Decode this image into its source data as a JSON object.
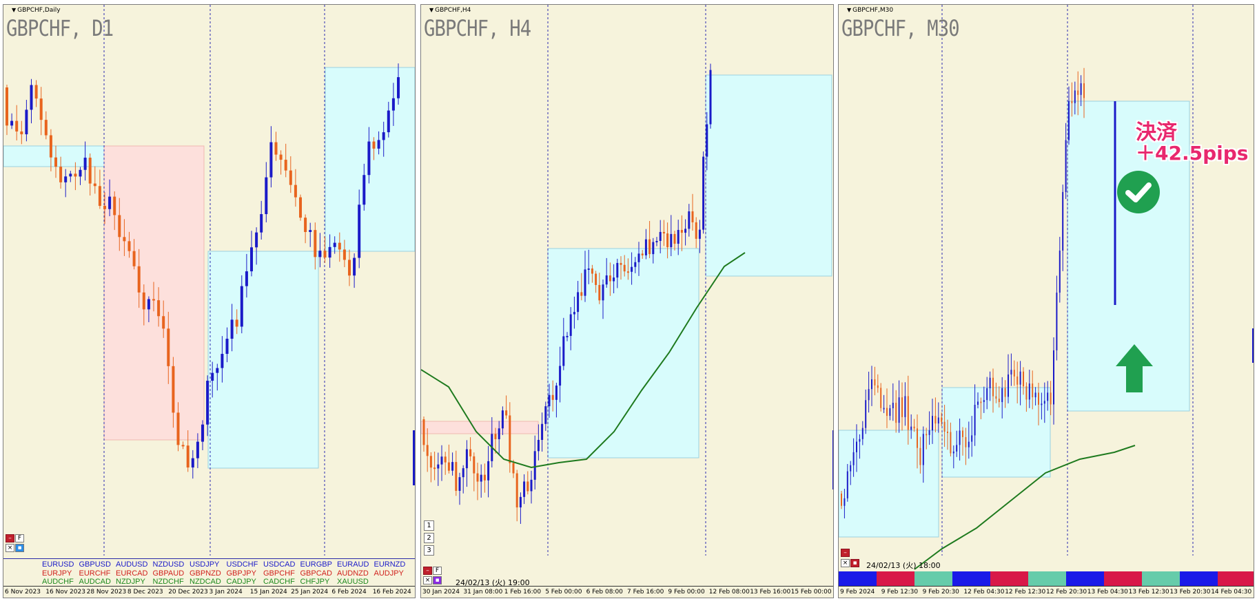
{
  "panels": [
    {
      "caption": "GBPCHF,Daily",
      "title": "GBPCHF, D1",
      "xlabels": [
        "6 Nov 2023",
        "16 Nov 2023",
        "28 Nov 2023",
        "8 Dec 2023",
        "20 Dec 2023",
        "3 Jan 2024",
        "15 Jan 2024",
        "25 Jan 2024",
        "6 Feb 2024",
        "16 Feb 2024"
      ],
      "buttons": [
        "F"
      ]
    },
    {
      "caption": "GBPCHF,H4",
      "title": "GBPCHF, H4",
      "xlabels": [
        "30 Jan 2024",
        "31 Jan 08:00",
        "1 Feb 16:00",
        "5 Feb 00:00",
        "6 Feb 08:00",
        "7 Feb 16:00",
        "9 Feb 00:00",
        "12 Feb 08:00",
        "13 Feb 16:00",
        "15 Feb 00:00"
      ],
      "numbers": [
        "1",
        "2",
        "3"
      ],
      "timestamp": "24/02/13 (火) 19:00",
      "buttons": [
        "F"
      ]
    },
    {
      "caption": "GBPCHF,M30",
      "title": "GBPCHF, M30",
      "xlabels": [
        "9 Feb 2024",
        "9 Feb 12:30",
        "9 Feb 20:30",
        "12 Feb 04:30",
        "12 Feb 12:30",
        "12 Feb 20:30",
        "13 Feb 04:30",
        "13 Feb 12:30",
        "13 Feb 20:30",
        "14 Feb 04:30"
      ],
      "timestamp": "24/02/13 (火) 18:00"
    }
  ],
  "currency_pairs": {
    "row1": [
      "EURUSD",
      "GBPUSD",
      "AUDUSD",
      "NZDUSD",
      "USDJPY",
      "USDCHF",
      "USDCAD",
      "EURGBP",
      "EURAUD",
      "EURNZD"
    ],
    "row2": [
      "EURJPY",
      "EURCHF",
      "EURCAD",
      "GBPAUD",
      "GBPNZD",
      "GBPJPY",
      "GBPCHF",
      "GBPCAD",
      "AUDNZD",
      "AUDJPY"
    ],
    "row3": [
      "AUDCHF",
      "AUDCAD",
      "NZDJPY",
      "NZDCHF",
      "NZDCAD",
      "CADJPY",
      "CADCHF",
      "CHFJPY",
      "XAUUSD"
    ]
  },
  "result": {
    "line1": "決済",
    "line2": "＋42.5pips"
  },
  "icons": {
    "check": "check-circle-icon",
    "arrow": "up-arrow-icon"
  },
  "colors": {
    "background": "#f6f3dc",
    "bull": "#1a1ac8",
    "bear": "#e8641e",
    "ma": "#1e7a1e",
    "range_box": "#d8fcfc",
    "sell_box": "#fde0dc",
    "result_text": "#e8286e",
    "check": "#20a050",
    "arrow": "#20a050"
  }
}
